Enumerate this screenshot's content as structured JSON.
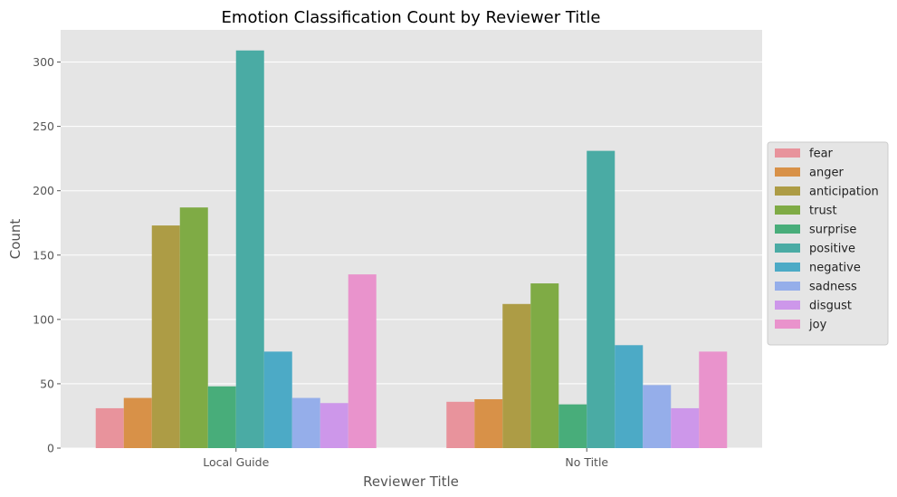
{
  "chart_data": {
    "type": "bar",
    "title": "Emotion Classification Count by Reviewer Title",
    "xlabel": "Reviewer Title",
    "ylabel": "Count",
    "categories": [
      "Local Guide",
      "No Title"
    ],
    "ylim": [
      0,
      325
    ],
    "yticks": [
      0,
      50,
      100,
      150,
      200,
      250,
      300
    ],
    "grid": true,
    "legend_position": "right",
    "series": [
      {
        "name": "fear",
        "color": "#e8939c",
        "values": [
          31,
          36
        ]
      },
      {
        "name": "anger",
        "color": "#d89148",
        "values": [
          39,
          38
        ]
      },
      {
        "name": "anticipation",
        "color": "#ad9c45",
        "values": [
          173,
          112
        ]
      },
      {
        "name": "trust",
        "color": "#7fab45",
        "values": [
          187,
          128
        ]
      },
      {
        "name": "surprise",
        "color": "#48ad7a",
        "values": [
          48,
          34
        ]
      },
      {
        "name": "positive",
        "color": "#4aaba4",
        "values": [
          309,
          231
        ]
      },
      {
        "name": "negative",
        "color": "#4caac6",
        "values": [
          75,
          80
        ]
      },
      {
        "name": "sadness",
        "color": "#95aeea",
        "values": [
          39,
          49
        ]
      },
      {
        "name": "disgust",
        "color": "#cd97ea",
        "values": [
          35,
          31
        ]
      },
      {
        "name": "joy",
        "color": "#e993cc",
        "values": [
          135,
          75
        ]
      }
    ]
  }
}
